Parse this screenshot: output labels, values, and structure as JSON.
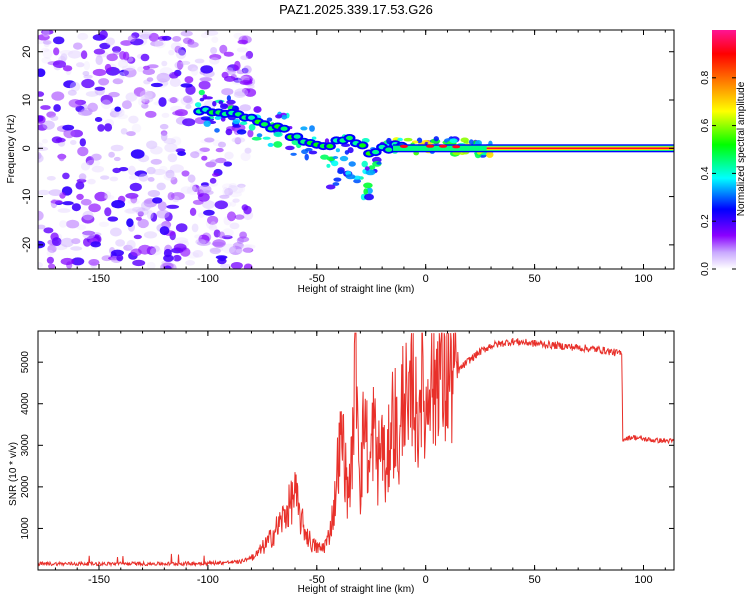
{
  "title": "PAZ1.2025.339.17.53.G26",
  "colors": {
    "line": "#e8302a",
    "frame": "#000000"
  },
  "chart_data": [
    {
      "type": "heatmap",
      "xlabel": "Height of straight line (km)",
      "ylabel": "Frequency (Hz)",
      "xlim": [
        -178,
        114
      ],
      "ylim": [
        -25,
        24.5
      ],
      "xticks": [
        -150,
        -100,
        -50,
        0,
        50,
        100
      ],
      "xtick_labels": [
        "-150",
        "-100",
        "-50",
        "0",
        "50",
        "100"
      ],
      "yticks": [
        -20,
        -10,
        0,
        10,
        20
      ],
      "ytick_labels": [
        "-20",
        "-10",
        "0",
        "10",
        "20"
      ],
      "colorbar": {
        "label": "Normalized spectral amplitude",
        "range": [
          0,
          1
        ],
        "ticks": [
          0.0,
          0.2,
          0.4,
          0.6,
          0.8
        ],
        "tick_labels": [
          "0.0",
          "0.2",
          "0.4",
          "0.6",
          "0.8"
        ],
        "stops": [
          "#ffffff",
          "#8a00ff",
          "#0000ff",
          "#00ffff",
          "#00ff00",
          "#ffff00",
          "#ff8000",
          "#ff0000",
          "#ff1493"
        ]
      },
      "ridge_frequency_hz": [
        {
          "x": -105,
          "f": 8.0
        },
        {
          "x": -95,
          "f": 7.5
        },
        {
          "x": -85,
          "f": 6.5
        },
        {
          "x": -75,
          "f": 5.0
        },
        {
          "x": -65,
          "f": 3.5
        },
        {
          "x": -55,
          "f": 1.0
        },
        {
          "x": -45,
          "f": 0.5
        },
        {
          "x": -35,
          "f": 2.0
        },
        {
          "x": -25,
          "f": -1.0
        },
        {
          "x": -15,
          "f": 0.5
        },
        {
          "x": -5,
          "f": 0.3
        },
        {
          "x": 5,
          "f": 0.5
        },
        {
          "x": 15,
          "f": 0.3
        },
        {
          "x": 30,
          "f": 0.0
        },
        {
          "x": 114,
          "f": 0.0
        }
      ]
    },
    {
      "type": "line",
      "xlabel": "Height of straight line (km)",
      "ylabel": "SNR (10 * v/v)",
      "xlim": [
        -178,
        114
      ],
      "ylim": [
        0,
        5750
      ],
      "xticks": [
        -150,
        -100,
        -50,
        0,
        50,
        100
      ],
      "xtick_labels": [
        "-150",
        "-100",
        "-50",
        "0",
        "50",
        "100"
      ],
      "yticks": [
        1000,
        2000,
        3000,
        4000,
        5000
      ],
      "ytick_labels": [
        "1000",
        "2000",
        "3000",
        "4000",
        "5000"
      ],
      "series": [
        {
          "name": "SNR",
          "x": [
            -178,
            -150,
            -120,
            -100,
            -85,
            -78,
            -72,
            -66,
            -62,
            -60,
            -58,
            -55,
            -52,
            -48,
            -45,
            -42,
            -40,
            -38,
            -36,
            -34,
            -32,
            -30,
            -28,
            -26,
            -24,
            -22,
            -20,
            -18,
            -16,
            -14,
            -12,
            -10,
            -8,
            -6,
            -4,
            -2,
            0,
            2,
            4,
            6,
            8,
            10,
            12,
            15,
            20,
            25,
            30,
            40,
            50,
            60,
            70,
            80,
            90,
            90.5,
            95,
            100,
            105,
            114
          ],
          "y": [
            150,
            150,
            150,
            160,
            200,
            350,
            700,
            1200,
            1600,
            1900,
            1300,
            900,
            600,
            500,
            700,
            1500,
            2800,
            3200,
            1800,
            2500,
            5400,
            2000,
            3900,
            2200,
            3500,
            2500,
            3200,
            2000,
            3700,
            3600,
            2700,
            4800,
            3200,
            5000,
            3300,
            4900,
            3500,
            5300,
            4100,
            5400,
            4300,
            4600,
            4700,
            4800,
            5050,
            5250,
            5400,
            5500,
            5450,
            5400,
            5350,
            5300,
            5200,
            3150,
            3200,
            3150,
            3120,
            3100
          ]
        }
      ]
    }
  ]
}
